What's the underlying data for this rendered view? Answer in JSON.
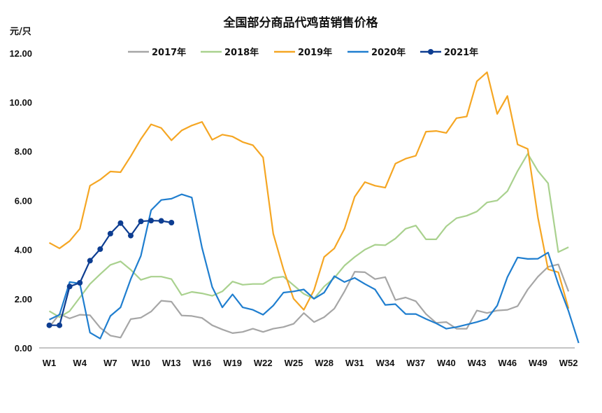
{
  "chart_data": {
    "type": "line",
    "title": "全国部分商品代鸡苗销售价格",
    "ylabel": "元/只",
    "ylim": [
      0,
      12
    ],
    "yticks": [
      "0.00",
      "2.00",
      "4.00",
      "6.00",
      "8.00",
      "10.00",
      "12.00"
    ],
    "xtick_labels": [
      "W1",
      "W4",
      "W7",
      "W10",
      "W13",
      "W16",
      "W19",
      "W22",
      "W25",
      "W28",
      "W31",
      "W34",
      "W37",
      "W40",
      "W43",
      "W46",
      "W49",
      "W52"
    ],
    "grid": false,
    "legend_position": "top",
    "series": [
      {
        "name": "2017年",
        "color": "#a6a6a6",
        "markers": false,
        "x": [
          1,
          2,
          3,
          4,
          5,
          6,
          7,
          8,
          9,
          10,
          11,
          12,
          13,
          14,
          15,
          16,
          17,
          18,
          19,
          20,
          21,
          22,
          23,
          24,
          25,
          26,
          27,
          28,
          29,
          30,
          31,
          32,
          33,
          34,
          35,
          36,
          37,
          38,
          39,
          40,
          41,
          42,
          43,
          44,
          45,
          46,
          47,
          48,
          49,
          50,
          51,
          52
        ],
        "values": [
          0.85,
          1.38,
          1.2,
          1.35,
          1.33,
          0.82,
          0.5,
          0.42,
          1.17,
          1.23,
          1.48,
          1.92,
          1.88,
          1.32,
          1.3,
          1.22,
          0.92,
          0.75,
          0.6,
          0.65,
          0.78,
          0.65,
          0.78,
          0.85,
          0.98,
          1.42,
          1.05,
          1.25,
          1.6,
          2.3,
          3.1,
          3.08,
          2.8,
          2.88,
          1.95,
          2.05,
          1.9,
          1.38,
          1.02,
          1.05,
          0.78,
          0.78,
          1.52,
          1.42,
          1.52,
          1.55,
          1.7,
          2.38,
          2.9,
          3.3,
          3.4,
          2.3
        ]
      },
      {
        "name": "2018年",
        "color": "#a9d18e",
        "markers": false,
        "x": [
          1,
          2,
          3,
          4,
          5,
          6,
          7,
          8,
          9,
          10,
          11,
          12,
          13,
          14,
          15,
          16,
          17,
          18,
          19,
          20,
          21,
          22,
          23,
          24,
          25,
          26,
          27,
          28,
          29,
          30,
          31,
          32,
          33,
          34,
          35,
          36,
          37,
          38,
          39,
          40,
          41,
          42,
          43,
          44,
          45,
          46,
          47,
          48,
          49,
          50,
          51,
          52
        ],
        "values": [
          1.5,
          1.25,
          1.5,
          2.05,
          2.6,
          3.0,
          3.38,
          3.52,
          3.18,
          2.77,
          2.9,
          2.9,
          2.8,
          2.15,
          2.28,
          2.22,
          2.12,
          2.3,
          2.7,
          2.57,
          2.6,
          2.6,
          2.85,
          2.9,
          2.55,
          2.2,
          2.0,
          2.5,
          2.85,
          3.35,
          3.7,
          4.0,
          4.2,
          4.18,
          4.45,
          4.85,
          4.98,
          4.42,
          4.42,
          4.95,
          5.28,
          5.38,
          5.55,
          5.92,
          6.0,
          6.38,
          7.2,
          7.9,
          7.2,
          6.7,
          3.9,
          4.1
        ]
      },
      {
        "name": "2019年",
        "color": "#f5a623",
        "markers": false,
        "x": [
          1,
          2,
          3,
          4,
          5,
          6,
          7,
          8,
          9,
          10,
          11,
          12,
          13,
          14,
          15,
          16,
          17,
          18,
          19,
          20,
          21,
          22,
          23,
          24,
          25,
          26,
          27,
          28,
          29,
          30,
          31,
          32,
          33,
          34,
          35,
          36,
          37,
          38,
          39,
          40,
          41,
          42,
          43,
          44,
          45,
          46,
          47,
          48,
          49,
          50,
          51,
          52
        ],
        "values": [
          4.28,
          4.05,
          4.35,
          4.85,
          6.6,
          6.85,
          7.18,
          7.15,
          7.8,
          8.5,
          9.1,
          8.95,
          8.45,
          8.85,
          9.05,
          9.2,
          8.47,
          8.68,
          8.6,
          8.38,
          8.25,
          7.75,
          4.65,
          3.2,
          2.0,
          1.55,
          2.35,
          3.7,
          4.05,
          4.85,
          6.15,
          6.75,
          6.6,
          6.52,
          7.5,
          7.7,
          7.82,
          8.8,
          8.83,
          8.75,
          9.35,
          9.42,
          10.85,
          11.22,
          9.52,
          10.25,
          8.28,
          8.1,
          5.3,
          3.2,
          3.08,
          1.6
        ]
      },
      {
        "name": "2020年",
        "color": "#1f7ecf",
        "markers": false,
        "x": [
          1,
          2,
          3,
          4,
          5,
          6,
          7,
          8,
          9,
          10,
          11,
          12,
          13,
          14,
          15,
          16,
          17,
          18,
          19,
          20,
          21,
          22,
          23,
          24,
          25,
          26,
          27,
          28,
          29,
          30,
          31,
          32,
          33,
          34,
          35,
          36,
          37,
          38,
          39,
          40,
          41,
          42,
          43,
          44,
          45,
          46,
          47,
          48,
          49,
          50,
          51,
          52,
          53
        ],
        "values": [
          1.15,
          1.35,
          2.68,
          2.62,
          0.62,
          0.38,
          1.3,
          1.65,
          2.8,
          3.75,
          5.6,
          6.02,
          6.07,
          6.25,
          6.12,
          4.08,
          2.48,
          1.65,
          2.18,
          1.65,
          1.55,
          1.35,
          1.72,
          2.25,
          2.3,
          2.38,
          2.0,
          2.25,
          2.92,
          2.68,
          2.85,
          2.6,
          2.38,
          1.75,
          1.78,
          1.38,
          1.38,
          1.18,
          1.0,
          0.78,
          0.85,
          0.95,
          1.05,
          1.18,
          1.72,
          2.88,
          3.68,
          3.62,
          3.63,
          3.88,
          2.6,
          1.5,
          0.2
        ]
      },
      {
        "name": "2021年",
        "color": "#0d3d91",
        "markers": true,
        "x": [
          1,
          2,
          3,
          4,
          5,
          6,
          7,
          8,
          9,
          10,
          11,
          12,
          13
        ],
        "values": [
          0.92,
          0.92,
          2.5,
          2.65,
          3.55,
          4.02,
          4.65,
          5.08,
          4.57,
          5.15,
          5.18,
          5.17,
          5.1
        ]
      }
    ]
  }
}
